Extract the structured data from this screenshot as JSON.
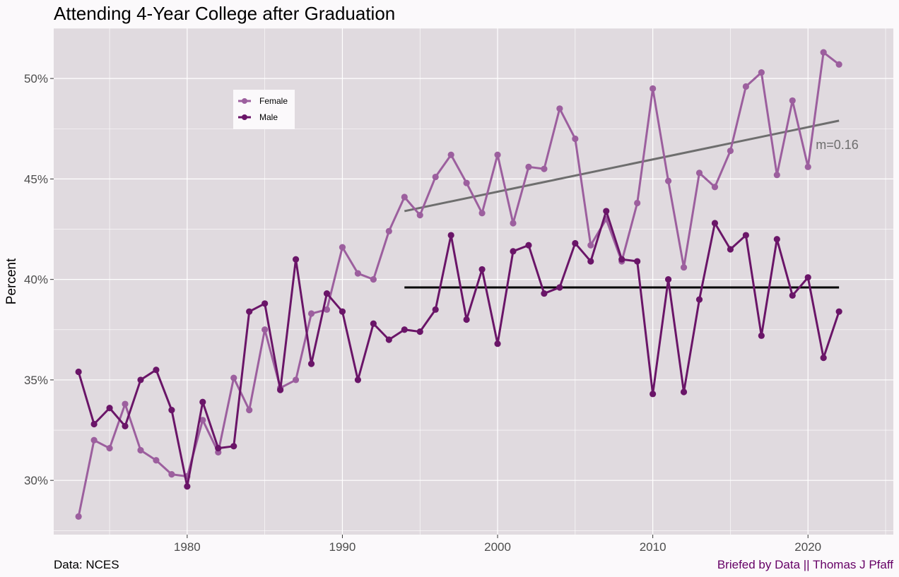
{
  "title": "Attending 4-Year College after Graduation",
  "caption_left": "Data: NCES",
  "caption_right": "Briefed by Data || Thomas J Pfaff",
  "colors": {
    "female": "#9C5F9E",
    "male": "#6A1568",
    "panel": "#E0DADF",
    "grid": "#FFFFFF",
    "trend_female": "#6E6E6E",
    "trend_male": "#000000",
    "caption_right": "#660066"
  },
  "chart_data": {
    "type": "line",
    "title": "Attending 4-Year College after Graduation",
    "xlabel": "",
    "ylabel": "Percent",
    "xlim": [
      1971.4,
      2025.5
    ],
    "ylim": [
      27.3,
      52.5
    ],
    "x_ticks": [
      1980,
      1990,
      2000,
      2010,
      2020
    ],
    "y_ticks": [
      30,
      35,
      40,
      45,
      50
    ],
    "y_tick_labels": [
      "30%",
      "35%",
      "40%",
      "45%",
      "50%"
    ],
    "grid": true,
    "legend_position": "upper-left inside",
    "x": [
      1973,
      1974,
      1975,
      1976,
      1977,
      1978,
      1979,
      1980,
      1981,
      1982,
      1983,
      1984,
      1985,
      1986,
      1987,
      1988,
      1989,
      1990,
      1991,
      1992,
      1993,
      1994,
      1995,
      1996,
      1997,
      1998,
      1999,
      2000,
      2001,
      2002,
      2003,
      2004,
      2005,
      2006,
      2007,
      2008,
      2009,
      2010,
      2011,
      2012,
      2013,
      2014,
      2015,
      2016,
      2017,
      2018,
      2019,
      2020,
      2021,
      2022
    ],
    "series": [
      {
        "name": "Female",
        "values": [
          28.2,
          32.0,
          31.6,
          33.8,
          31.5,
          31.0,
          30.3,
          30.2,
          33.0,
          31.4,
          35.1,
          33.5,
          37.5,
          34.6,
          35.0,
          38.3,
          38.5,
          41.6,
          40.3,
          40.0,
          42.4,
          44.1,
          43.2,
          45.1,
          46.2,
          44.8,
          43.3,
          46.2,
          42.8,
          45.6,
          45.5,
          48.5,
          47.0,
          41.7,
          43.0,
          40.9,
          43.8,
          49.5,
          44.9,
          40.6,
          45.3,
          44.6,
          46.4,
          49.6,
          50.3,
          45.2,
          48.9,
          45.6,
          51.3,
          50.7
        ]
      },
      {
        "name": "Male",
        "values": [
          35.4,
          32.8,
          33.6,
          32.7,
          35.0,
          35.5,
          33.5,
          29.7,
          33.9,
          31.6,
          31.7,
          38.4,
          38.8,
          34.5,
          41.0,
          35.8,
          39.3,
          38.4,
          35.0,
          37.8,
          37.0,
          37.5,
          37.4,
          38.5,
          42.2,
          38.0,
          40.5,
          36.8,
          41.4,
          41.7,
          39.3,
          39.6,
          41.8,
          40.9,
          43.4,
          41.0,
          40.9,
          34.3,
          40.0,
          34.4,
          39.0,
          42.8,
          41.5,
          42.2,
          37.2,
          42.0,
          39.2,
          40.1,
          36.1,
          38.4
        ]
      }
    ],
    "trend_lines": [
      {
        "series": "Female",
        "x": [
          1994,
          2022
        ],
        "y": [
          43.4,
          47.9
        ],
        "label": "m=0.16"
      },
      {
        "series": "Male",
        "x": [
          1994,
          2022
        ],
        "y": [
          39.6,
          39.6
        ]
      }
    ]
  }
}
